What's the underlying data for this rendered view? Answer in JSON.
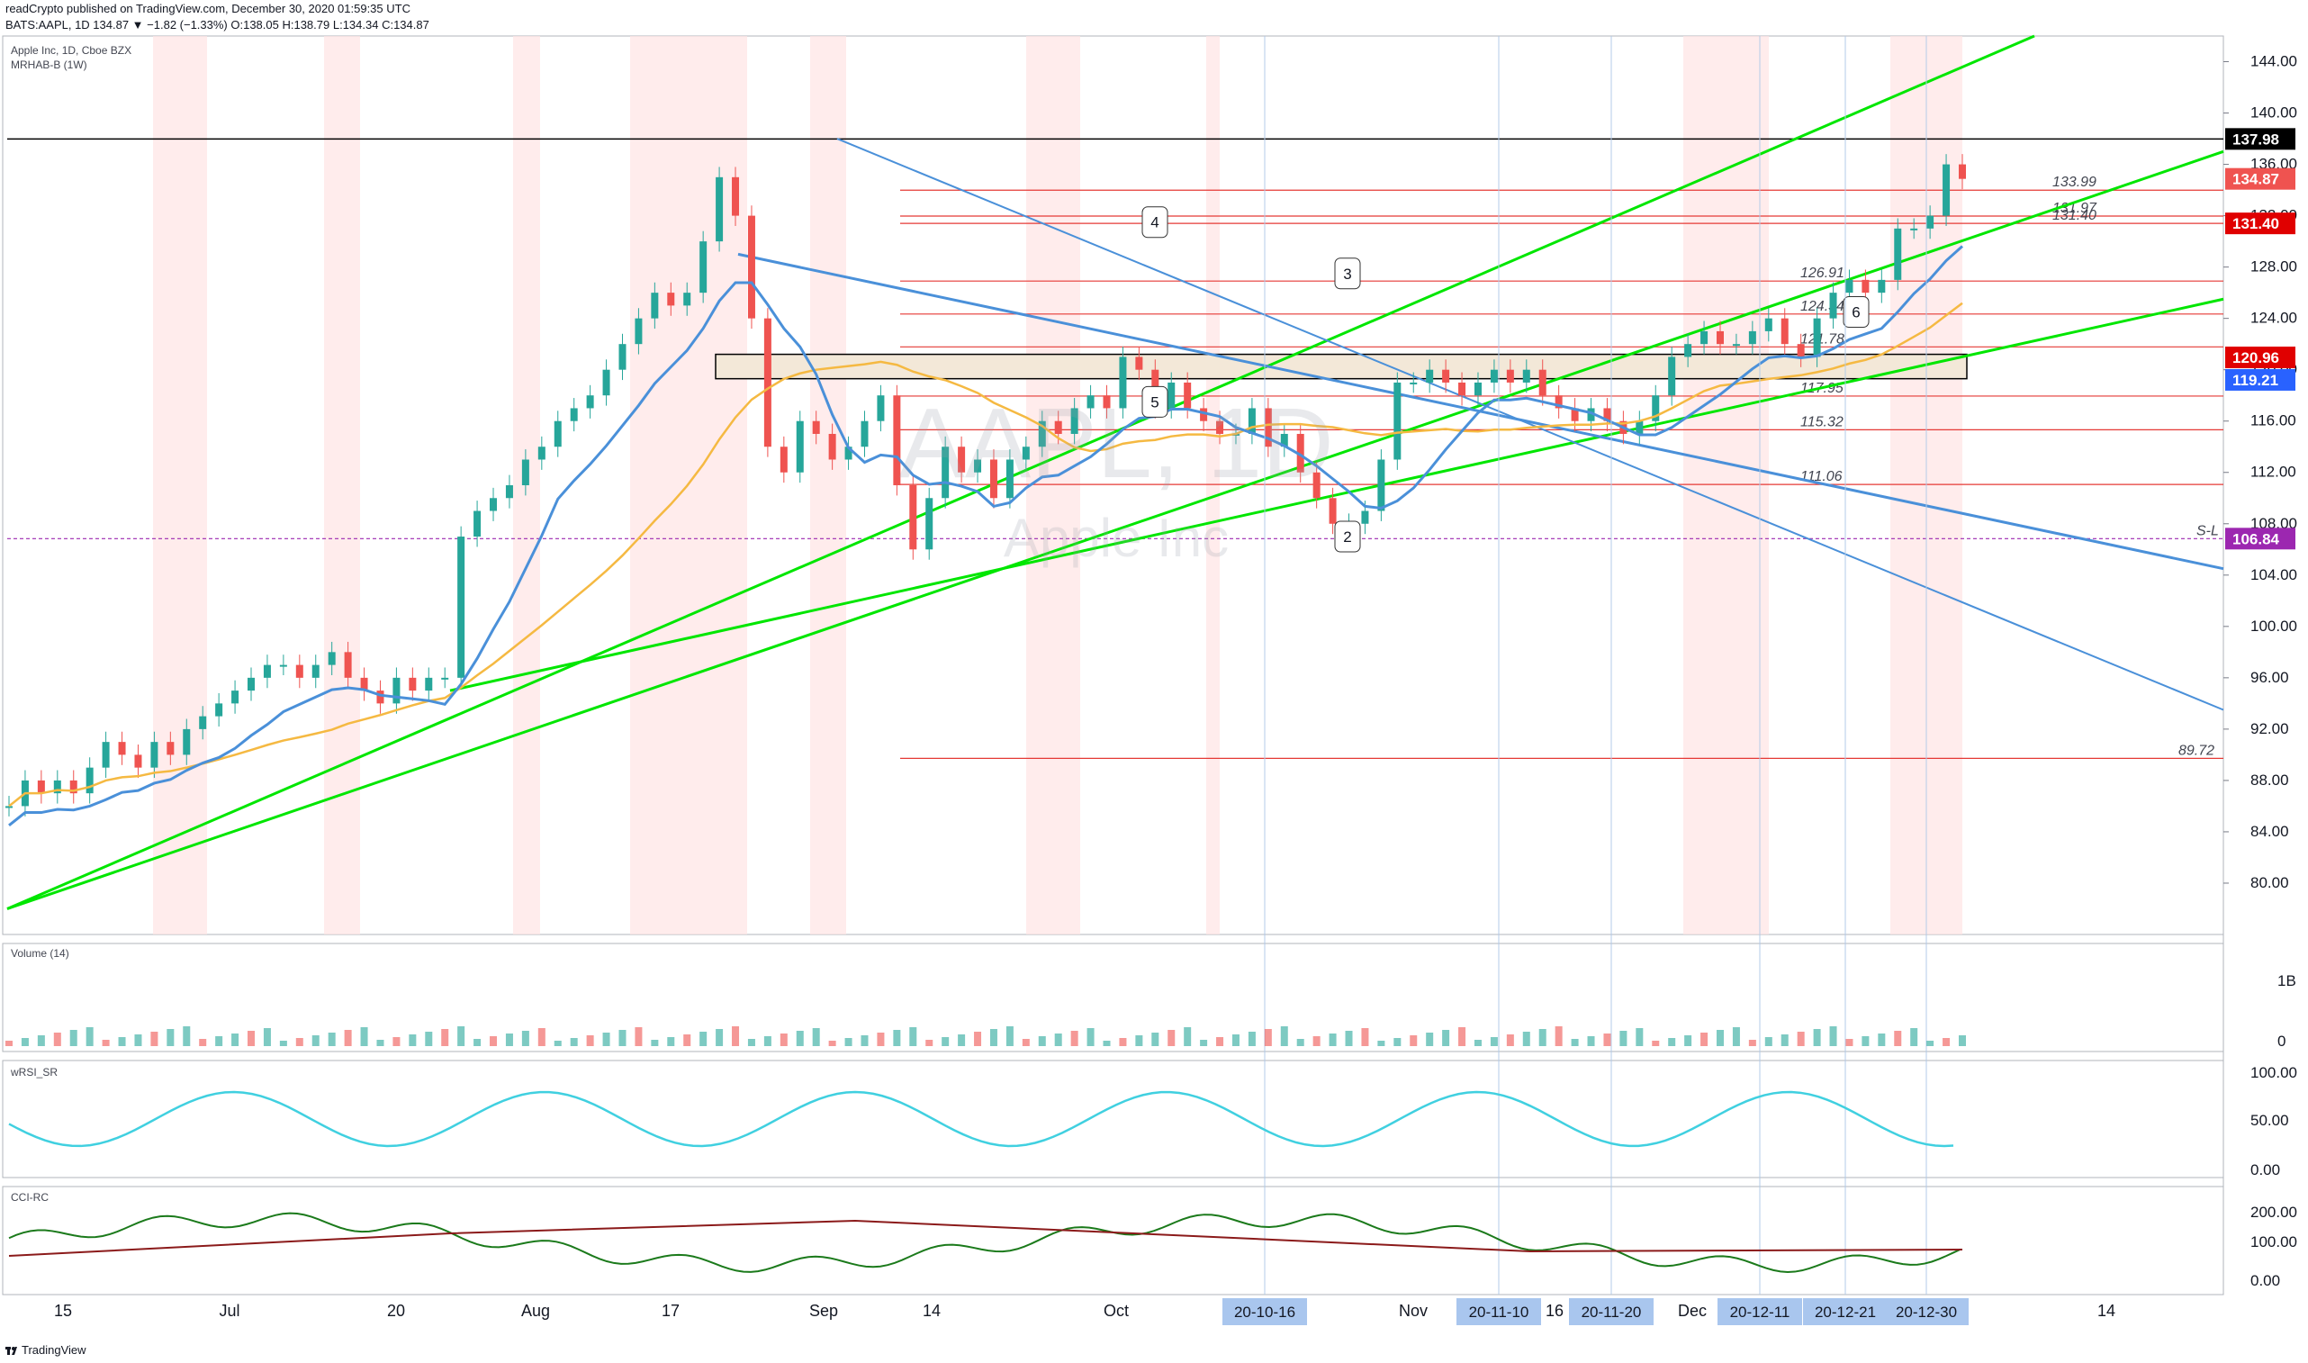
{
  "header": {
    "published_line": "readCrypto published on TradingView.com, December 30, 2020 01:59:35 UTC",
    "ticker_line": "BATS:AAPL, 1D 134.87 ▼ −1.82 (−1.33%) O:138.05 H:138.79 L:134.34 C:134.87"
  },
  "legend": {
    "symbol": "Apple Inc, 1D, Cboe BZX",
    "indicator": "MRHAB-B (1W)"
  },
  "watermark": {
    "ticker": "AAPL, 1D",
    "name": "Apple Inc"
  },
  "footer": {
    "brand": "TradingView",
    "logo_icon": "tradingview-logo-icon"
  },
  "colors": {
    "up": "#26a69a",
    "down": "#ef5350",
    "green_line": "#00e600",
    "blue_line": "#4a90d9",
    "orange_line": "#f5b942",
    "purple_label": "#9c27b0"
  },
  "chart_data": [
    {
      "type": "line",
      "title": "Apple Inc, 1D, Cboe BZX",
      "ylim": [
        76,
        146
      ],
      "yticks": [
        "144.00",
        "140.00",
        "136.00",
        "132.00",
        "128.00",
        "124.00",
        "120.00",
        "116.00",
        "112.00",
        "108.00",
        "104.00",
        "100.00",
        "96.00",
        "92.00",
        "88.00",
        "84.00",
        "80.00"
      ],
      "xticks": [
        "15",
        "Jul",
        "20",
        "Aug",
        "17",
        "Sep",
        "14",
        "Oct",
        "Nov",
        "16",
        "Dec",
        "14"
      ],
      "date_badges": [
        "20-10-16",
        "20-11-10",
        "20-11-20",
        "20-12-11",
        "20-12-21",
        "20-12-30"
      ],
      "price_labels": [
        {
          "value": 137.98,
          "text": "137.98",
          "color": "#000000"
        },
        {
          "value": 134.87,
          "text": "134.87",
          "color": "#ef5350"
        },
        {
          "value": 131.4,
          "text": "131.40",
          "color": "#e00000"
        },
        {
          "value": 120.96,
          "text": "120.96",
          "color": "#e00000"
        },
        {
          "value": 119.21,
          "text": "119.21",
          "color": "#2962ff"
        },
        {
          "value": 106.84,
          "text": "106.84",
          "color": "#9c27b0"
        }
      ],
      "level_annotations": [
        {
          "value": 133.99,
          "text": "133.99"
        },
        {
          "value": 131.97,
          "text": "131.97"
        },
        {
          "value": 131.4,
          "text": "131.40"
        },
        {
          "value": 126.91,
          "text": "126.91"
        },
        {
          "value": 124.34,
          "text": "124.34"
        },
        {
          "value": 121.78,
          "text": "121.78"
        },
        {
          "value": 117.95,
          "text": "117.95"
        },
        {
          "value": 115.32,
          "text": "115.32"
        },
        {
          "value": 111.06,
          "text": "111.06"
        },
        {
          "value": 106.84,
          "text": "S-L"
        },
        {
          "value": 89.72,
          "text": "89.72"
        }
      ],
      "wave_labels": [
        "2",
        "3",
        "4",
        "5",
        "6"
      ],
      "series": [
        {
          "values": [
            86,
            88,
            87,
            88,
            87,
            89,
            91,
            90,
            89,
            91,
            90,
            92,
            93,
            94,
            95,
            96,
            97,
            97,
            96,
            97,
            98,
            96,
            95,
            94,
            96,
            95,
            96,
            96,
            107,
            109,
            110,
            111,
            113,
            114,
            116,
            117,
            118,
            120,
            122,
            124,
            126,
            125,
            126,
            130,
            135,
            132,
            124,
            114,
            112,
            116,
            115,
            113,
            114,
            116,
            118,
            111,
            106,
            110,
            114,
            112,
            113,
            110,
            113,
            114,
            116,
            115,
            117,
            118,
            117,
            121,
            120,
            117,
            119,
            117,
            116,
            115,
            115,
            117,
            114,
            115,
            112,
            110,
            108,
            108,
            109,
            113,
            119,
            119,
            120,
            119,
            118,
            119,
            120,
            119,
            120,
            118,
            117,
            116,
            117,
            116,
            115,
            116,
            118,
            121,
            122,
            123,
            122,
            122,
            123,
            124,
            122,
            121,
            124,
            126,
            127,
            126,
            127,
            131,
            131,
            132,
            136,
            134.87
          ]
        }
      ]
    },
    {
      "type": "bar",
      "title": "Volume (14)",
      "yticks": [
        "1B",
        "0"
      ]
    },
    {
      "type": "line",
      "title": "wRSI_SR",
      "yticks": [
        "100.00",
        "50.00",
        "0.00"
      ]
    },
    {
      "type": "line",
      "title": "CCI-RC",
      "yticks": [
        "200.00",
        "100.00",
        "0.00"
      ]
    }
  ]
}
